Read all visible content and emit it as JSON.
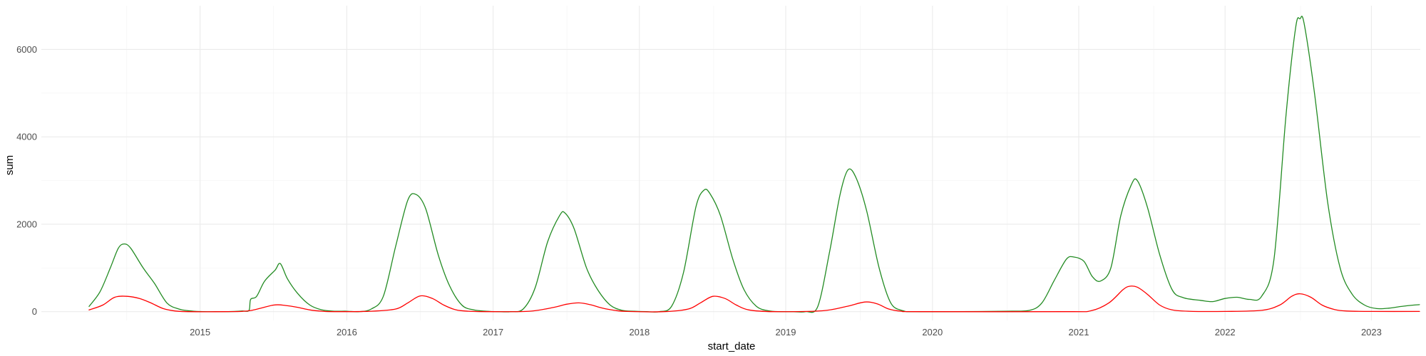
{
  "chart_data": {
    "type": "line",
    "xlabel": "start_date",
    "ylabel": "sum",
    "grid": true,
    "legend": "none",
    "x_ticks": [
      "2015",
      "2016",
      "2017",
      "2018",
      "2019",
      "2020",
      "2021",
      "2022",
      "2023"
    ],
    "y_ticks": [
      "0",
      "2000",
      "4000",
      "6000"
    ],
    "xlim": [
      "2014-06-01",
      "2023-11-01"
    ],
    "ylim": [
      -200,
      7000
    ],
    "series": [
      {
        "color": "#228B22",
        "points": [
          [
            "2014-09-28",
            120
          ],
          [
            "2014-10-25",
            450
          ],
          [
            "2014-11-20",
            1000
          ],
          [
            "2014-12-10",
            1450
          ],
          [
            "2014-12-25",
            1550
          ],
          [
            "2015-01-10",
            1450
          ],
          [
            "2015-02-10",
            1000
          ],
          [
            "2015-03-10",
            650
          ],
          [
            "2015-04-10",
            200
          ],
          [
            "2015-05-10",
            60
          ],
          [
            "2015-06-10",
            15
          ],
          [
            "2015-07-10",
            0
          ],
          [
            "2015-08-10",
            0
          ],
          [
            "2015-09-10",
            0
          ],
          [
            "2015-10-15",
            15
          ],
          [
            "2015-11-01",
            30
          ],
          [
            "2015-11-05",
            280
          ],
          [
            "2015-11-20",
            350
          ],
          [
            "2015-12-10",
            700
          ],
          [
            "2016-01-05",
            950
          ],
          [
            "2016-01-18",
            1100
          ],
          [
            "2016-02-05",
            750
          ],
          [
            "2016-03-01",
            420
          ],
          [
            "2016-04-01",
            150
          ],
          [
            "2016-05-01",
            40
          ],
          [
            "2016-06-01",
            10
          ],
          [
            "2016-07-01",
            10
          ],
          [
            "2016-08-01",
            0
          ],
          [
            "2016-09-01",
            60
          ],
          [
            "2016-10-01",
            350
          ],
          [
            "2016-11-01",
            1500
          ],
          [
            "2016-12-01",
            2550
          ],
          [
            "2016-12-22",
            2680
          ],
          [
            "2017-01-15",
            2350
          ],
          [
            "2017-02-15",
            1300
          ],
          [
            "2017-03-15",
            600
          ],
          [
            "2017-04-15",
            150
          ],
          [
            "2017-05-15",
            40
          ],
          [
            "2017-06-15",
            10
          ],
          [
            "2017-07-15",
            0
          ],
          [
            "2017-08-15",
            0
          ],
          [
            "2017-09-15",
            60
          ],
          [
            "2017-10-15",
            550
          ],
          [
            "2017-11-15",
            1600
          ],
          [
            "2017-12-15",
            2200
          ],
          [
            "2017-12-28",
            2260
          ],
          [
            "2018-01-20",
            1900
          ],
          [
            "2018-02-20",
            1000
          ],
          [
            "2018-03-20",
            500
          ],
          [
            "2018-04-20",
            150
          ],
          [
            "2018-05-20",
            30
          ],
          [
            "2018-06-20",
            10
          ],
          [
            "2018-07-20",
            0
          ],
          [
            "2018-08-20",
            0
          ],
          [
            "2018-09-20",
            120
          ],
          [
            "2018-10-20",
            900
          ],
          [
            "2018-11-20",
            2400
          ],
          [
            "2018-12-10",
            2780
          ],
          [
            "2018-12-25",
            2700
          ],
          [
            "2019-01-20",
            2200
          ],
          [
            "2019-02-20",
            1200
          ],
          [
            "2019-03-20",
            500
          ],
          [
            "2019-04-20",
            120
          ],
          [
            "2019-05-20",
            20
          ],
          [
            "2019-06-20",
            0
          ],
          [
            "2019-07-20",
            0
          ],
          [
            "2019-08-20",
            0
          ],
          [
            "2019-09-20",
            120
          ],
          [
            "2019-10-20",
            1400
          ],
          [
            "2019-11-15",
            2700
          ],
          [
            "2019-12-05",
            3250
          ],
          [
            "2019-12-25",
            3050
          ],
          [
            "2020-01-20",
            2300
          ],
          [
            "2020-02-20",
            1000
          ],
          [
            "2020-03-20",
            200
          ],
          [
            "2020-04-20",
            20
          ],
          [
            "2020-05-20",
            0
          ],
          [
            "2020-09-01",
            0
          ],
          [
            "2021-01-01",
            10
          ],
          [
            "2021-03-01",
            30
          ],
          [
            "2021-04-01",
            200
          ],
          [
            "2021-05-01",
            700
          ],
          [
            "2021-06-01",
            1200
          ],
          [
            "2021-06-20",
            1250
          ],
          [
            "2021-07-15",
            1150
          ],
          [
            "2021-08-05",
            800
          ],
          [
            "2021-08-25",
            700
          ],
          [
            "2021-09-20",
            1000
          ],
          [
            "2021-10-15",
            2200
          ],
          [
            "2021-11-10",
            2900
          ],
          [
            "2021-11-25",
            3000
          ],
          [
            "2021-12-20",
            2400
          ],
          [
            "2022-01-20",
            1300
          ],
          [
            "2022-02-20",
            500
          ],
          [
            "2022-03-20",
            320
          ],
          [
            "2022-05-01",
            260
          ],
          [
            "2022-06-01",
            230
          ],
          [
            "2022-07-01",
            300
          ],
          [
            "2022-08-01",
            330
          ],
          [
            "2022-09-01",
            280
          ],
          [
            "2022-10-01",
            350
          ],
          [
            "2022-11-01",
            1200
          ],
          [
            "2022-12-01",
            4500
          ],
          [
            "2022-12-25",
            6500
          ],
          [
            "2023-01-05",
            6700
          ],
          [
            "2023-01-15",
            6600
          ],
          [
            "2023-02-10",
            5000
          ],
          [
            "2023-03-15",
            2500
          ],
          [
            "2023-04-15",
            1000
          ],
          [
            "2023-05-15",
            400
          ],
          [
            "2023-06-15",
            150
          ],
          [
            "2023-07-15",
            70
          ],
          [
            "2023-08-15",
            80
          ],
          [
            "2023-09-15",
            120
          ],
          [
            "2023-10-15",
            150
          ],
          [
            "2023-10-30",
            160
          ]
        ]
      },
      {
        "color": "#FF0000",
        "points": [
          [
            "2014-09-28",
            40
          ],
          [
            "2014-11-01",
            150
          ],
          [
            "2014-12-01",
            330
          ],
          [
            "2015-01-01",
            350
          ],
          [
            "2015-02-01",
            300
          ],
          [
            "2015-03-01",
            200
          ],
          [
            "2015-04-01",
            70
          ],
          [
            "2015-05-01",
            15
          ],
          [
            "2015-06-01",
            0
          ],
          [
            "2015-09-01",
            0
          ],
          [
            "2015-11-01",
            20
          ],
          [
            "2016-01-01",
            150
          ],
          [
            "2016-02-01",
            140
          ],
          [
            "2016-03-01",
            100
          ],
          [
            "2016-04-01",
            40
          ],
          [
            "2016-05-01",
            10
          ],
          [
            "2016-06-01",
            0
          ],
          [
            "2016-09-01",
            10
          ],
          [
            "2016-11-01",
            60
          ],
          [
            "2016-12-01",
            200
          ],
          [
            "2017-01-01",
            360
          ],
          [
            "2017-02-01",
            300
          ],
          [
            "2017-03-01",
            150
          ],
          [
            "2017-04-01",
            40
          ],
          [
            "2017-05-01",
            10
          ],
          [
            "2017-07-01",
            0
          ],
          [
            "2017-10-01",
            10
          ],
          [
            "2017-12-01",
            100
          ],
          [
            "2018-01-01",
            170
          ],
          [
            "2018-02-01",
            200
          ],
          [
            "2018-03-01",
            160
          ],
          [
            "2018-04-01",
            80
          ],
          [
            "2018-05-01",
            30
          ],
          [
            "2018-06-01",
            5
          ],
          [
            "2018-09-01",
            0
          ],
          [
            "2018-11-01",
            60
          ],
          [
            "2018-12-01",
            200
          ],
          [
            "2019-01-01",
            350
          ],
          [
            "2019-02-01",
            300
          ],
          [
            "2019-03-01",
            150
          ],
          [
            "2019-04-01",
            40
          ],
          [
            "2019-06-01",
            0
          ],
          [
            "2019-10-01",
            20
          ],
          [
            "2019-12-01",
            120
          ],
          [
            "2020-01-15",
            220
          ],
          [
            "2020-02-15",
            180
          ],
          [
            "2020-03-15",
            60
          ],
          [
            "2020-04-15",
            10
          ],
          [
            "2020-06-01",
            0
          ],
          [
            "2021-06-01",
            0
          ],
          [
            "2021-08-01",
            20
          ],
          [
            "2021-09-15",
            200
          ],
          [
            "2021-10-20",
            500
          ],
          [
            "2021-11-05",
            580
          ],
          [
            "2021-11-25",
            560
          ],
          [
            "2021-12-20",
            400
          ],
          [
            "2022-01-20",
            150
          ],
          [
            "2022-02-20",
            40
          ],
          [
            "2022-04-01",
            10
          ],
          [
            "2022-07-01",
            5
          ],
          [
            "2022-10-01",
            30
          ],
          [
            "2022-11-15",
            150
          ],
          [
            "2022-12-15",
            350
          ],
          [
            "2023-01-05",
            410
          ],
          [
            "2023-02-01",
            330
          ],
          [
            "2023-03-01",
            150
          ],
          [
            "2023-04-01",
            50
          ],
          [
            "2023-05-01",
            15
          ],
          [
            "2023-07-01",
            5
          ],
          [
            "2023-10-30",
            5
          ]
        ]
      }
    ]
  }
}
